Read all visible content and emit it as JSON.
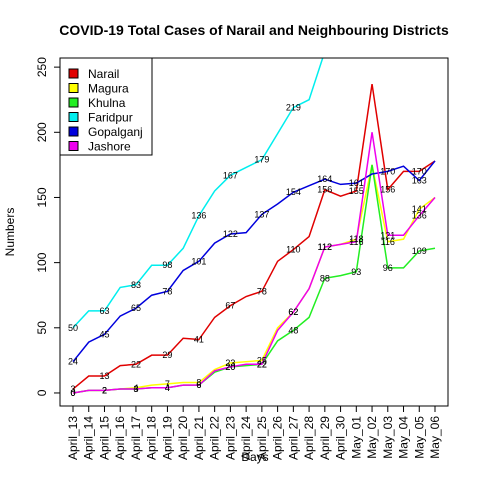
{
  "chart_data": {
    "type": "line",
    "title": "COVID-19 Total Cases of Narail and Neighbouring Districts",
    "x_label": "Days",
    "y_label": "Numbers",
    "categories": [
      "April_13",
      "April_14",
      "April_15",
      "April_16",
      "April_17",
      "April_18",
      "April_19",
      "April_20",
      "April_21",
      "April_22",
      "April_23",
      "April_24",
      "April_25",
      "April_26",
      "April_27",
      "April_28",
      "April_29",
      "April_30",
      "May_01",
      "May_02",
      "May_03",
      "May_04",
      "May_05",
      "May_06"
    ],
    "ylim": [
      -10,
      257
    ],
    "yticks": [
      0,
      50,
      100,
      150,
      200,
      250
    ],
    "legend": "top-left",
    "series": [
      {
        "name": "Narail",
        "color": "#e00000",
        "values": [
          3,
          13,
          13,
          21,
          22,
          29,
          29,
          42,
          41,
          58,
          67,
          74,
          78,
          101,
          110,
          120,
          156,
          151,
          155,
          237,
          156,
          170,
          170,
          178
        ]
      },
      {
        "name": "Magura",
        "color": "#ffff00",
        "values": [
          0,
          2,
          2,
          3,
          4,
          6,
          7,
          8,
          8,
          18,
          23,
          24,
          25,
          50,
          62,
          80,
          112,
          114,
          118,
          175,
          116,
          118,
          141,
          150
        ]
      },
      {
        "name": "Khulna",
        "color": "#22ee22",
        "values": [
          0,
          2,
          2,
          3,
          3,
          4,
          4,
          6,
          6,
          16,
          20,
          21,
          22,
          40,
          48,
          58,
          88,
          90,
          93,
          175,
          96,
          96,
          109,
          111
        ]
      },
      {
        "name": "Faridpur",
        "color": "#00eeee",
        "values": [
          50,
          63,
          63,
          81,
          83,
          98,
          98,
          111,
          136,
          155,
          167,
          173,
          179,
          199,
          219,
          225,
          262,
          null,
          null,
          null,
          null,
          null,
          null,
          null
        ]
      },
      {
        "name": "Gopalganj",
        "color": "#0000dd",
        "values": [
          24,
          39,
          45,
          59,
          65,
          75,
          78,
          94,
          101,
          115,
          122,
          123,
          137,
          145,
          154,
          159,
          164,
          160,
          161,
          168,
          170,
          174,
          163,
          178
        ]
      },
      {
        "name": "Jashore",
        "color": "#ee00ee",
        "values": [
          0,
          2,
          2,
          3,
          3,
          4,
          4,
          6,
          6,
          17,
          20,
          22,
          22,
          48,
          62,
          80,
          112,
          114,
          116,
          200,
          121,
          121,
          136,
          150
        ]
      }
    ]
  }
}
